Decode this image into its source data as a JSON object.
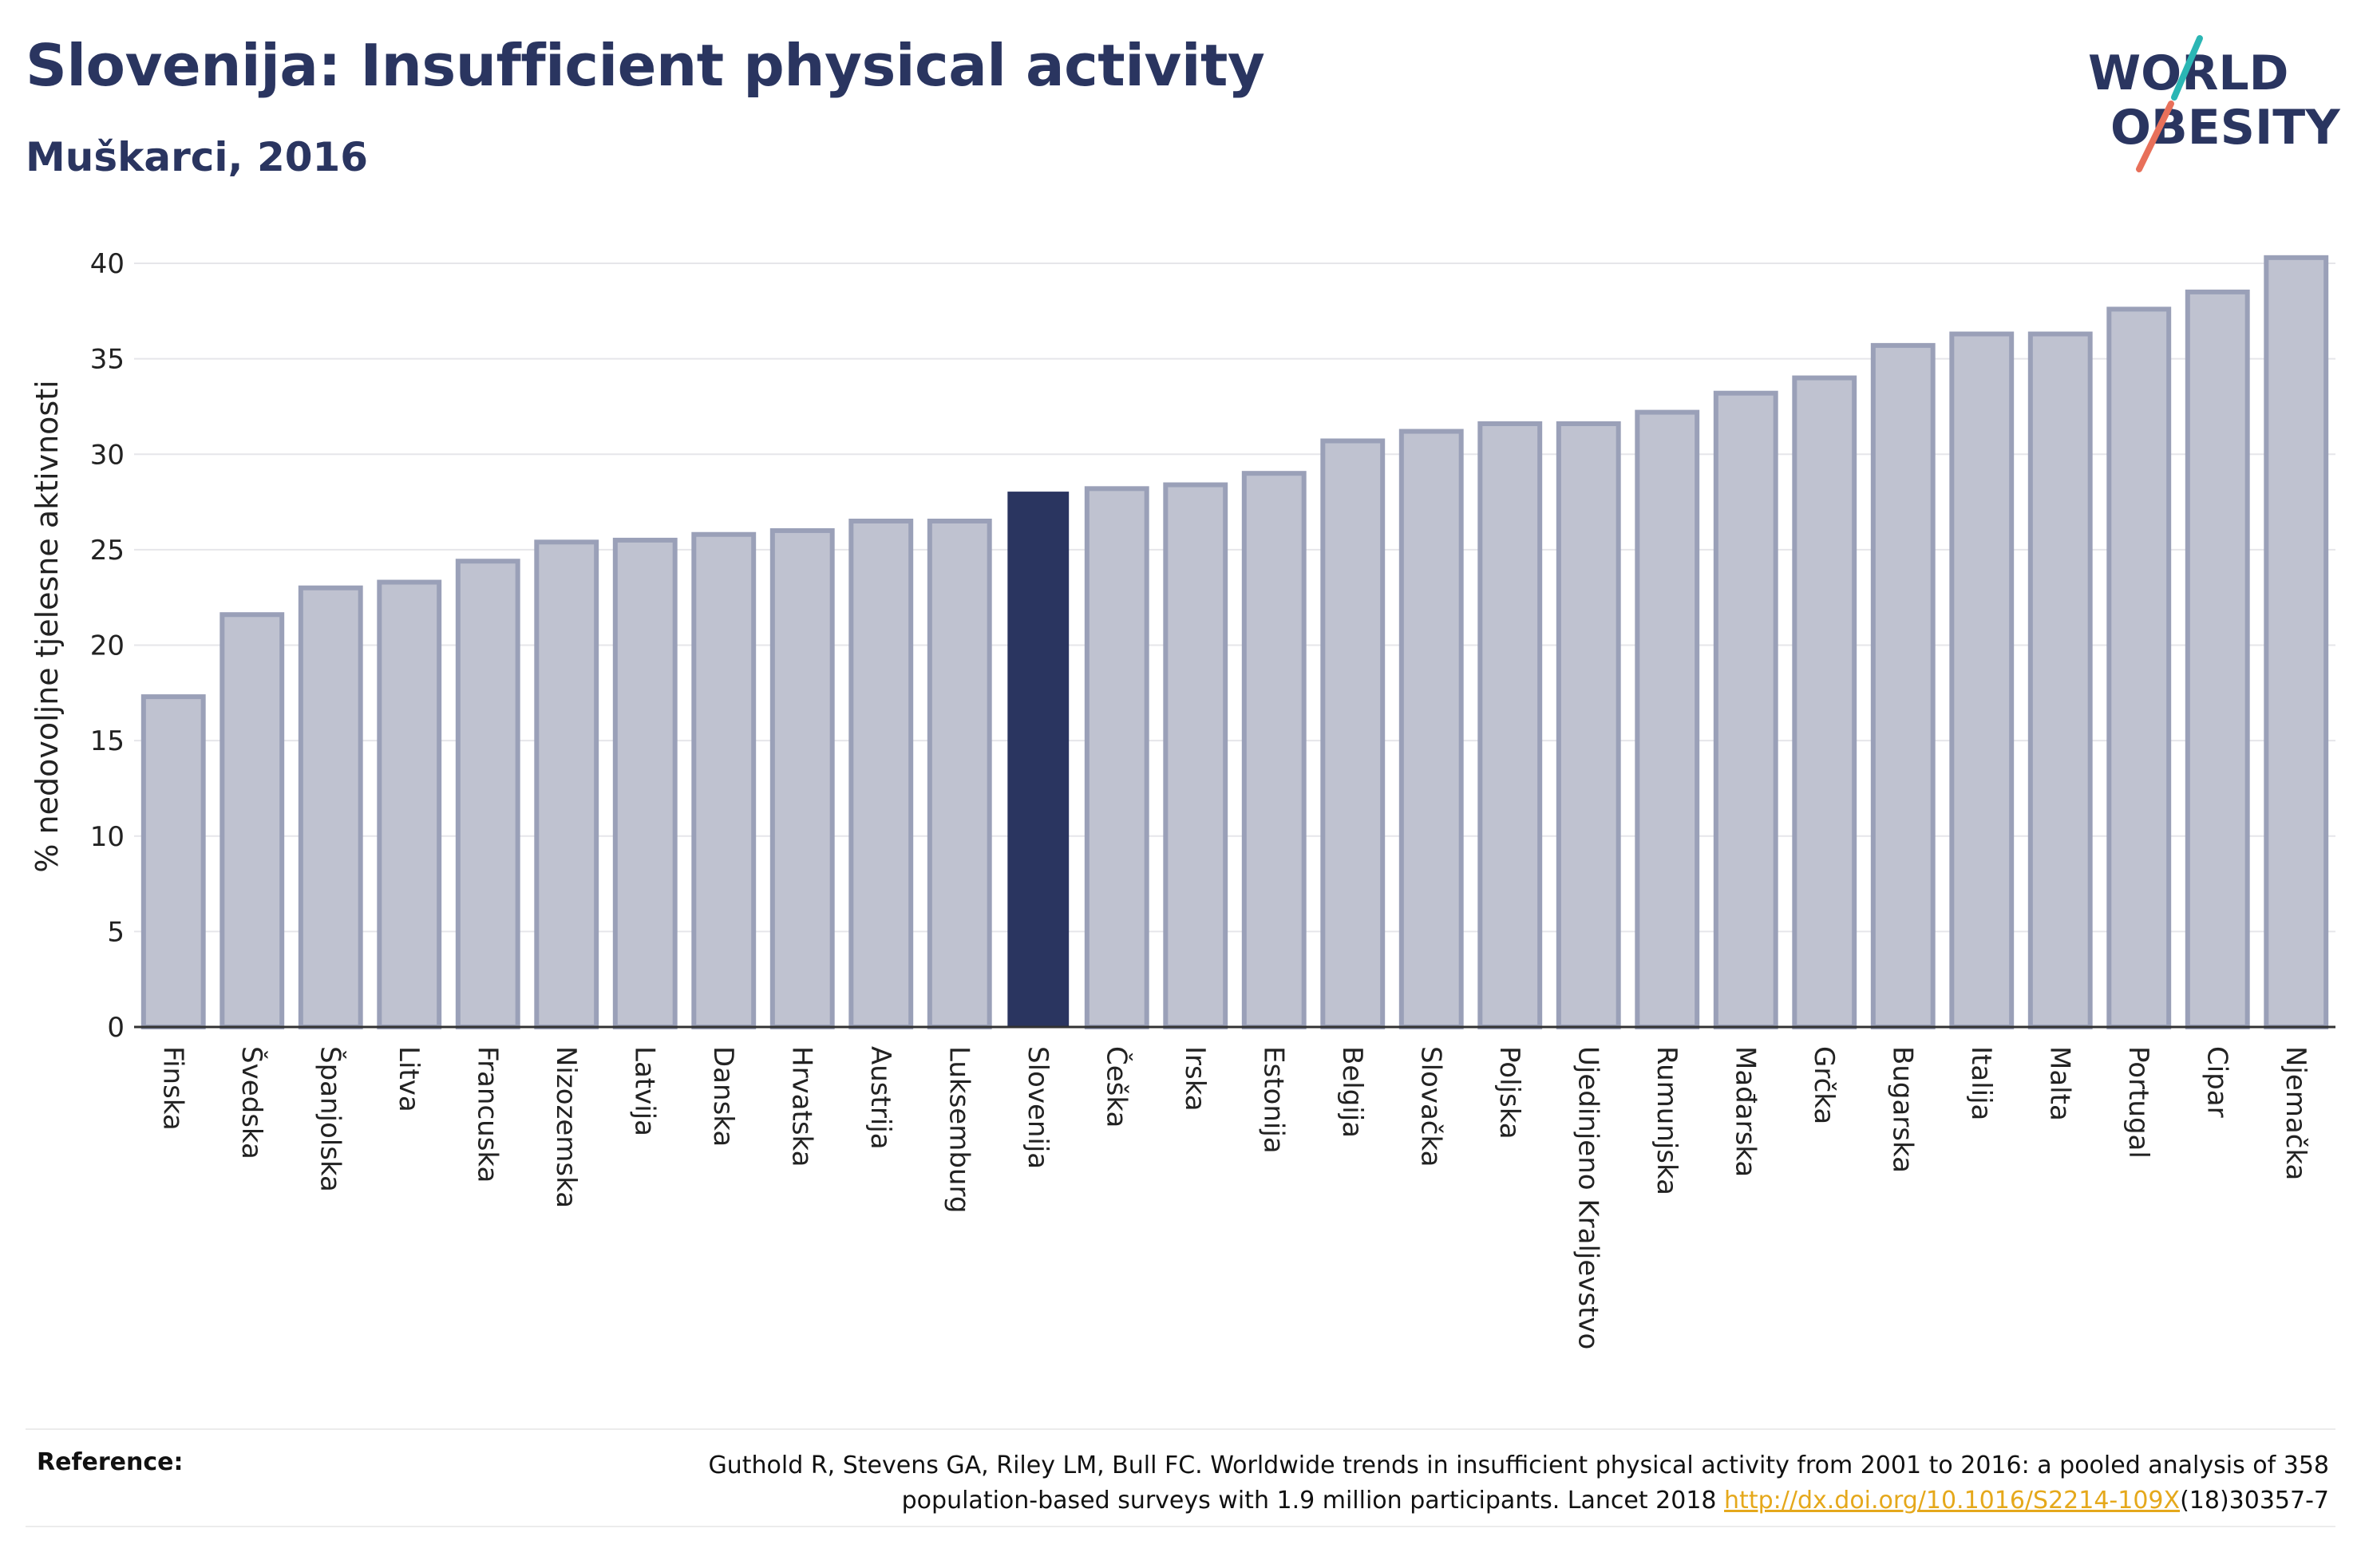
{
  "header": {
    "title": "Slovenija: Insufficient physical activity",
    "subtitle": "Muškarci, 2016"
  },
  "logo": {
    "line1": "WORLD",
    "line2": "OBESITY",
    "colors": {
      "text": "#2a3560",
      "slash_top": "#2bb6b4",
      "slash_bottom": "#e8705a"
    }
  },
  "chart_data": {
    "type": "bar",
    "ylabel": "% nedovoljne tjelesne aktivnosti",
    "ylim": [
      0,
      40
    ],
    "yticks": [
      0,
      5,
      10,
      15,
      20,
      25,
      30,
      35,
      40
    ],
    "grid": true,
    "highlight": "Slovenija",
    "colors": {
      "bar": "#bfc2d0",
      "bar_edge": "#9aa0b8",
      "highlight": "#2a3560",
      "grid": "#e6e6ea",
      "axis": "#333333"
    },
    "categories": [
      "Finska",
      "Švedska",
      "Španjolska",
      "Litva",
      "Francuska",
      "Nizozemska",
      "Latvija",
      "Danska",
      "Hrvatska",
      "Austrija",
      "Luksemburg",
      "Slovenija",
      "Češka",
      "Irska",
      "Estonija",
      "Belgija",
      "Slovačka",
      "Poljska",
      "Ujedinjeno Kraljevstvo",
      "Rumunjska",
      "Mađarska",
      "Grčka",
      "Bugarska",
      "Italija",
      "Malta",
      "Portugal",
      "Cipar",
      "Njemačka"
    ],
    "values": [
      17.3,
      21.6,
      23.0,
      23.3,
      24.4,
      25.4,
      25.5,
      25.8,
      26.0,
      26.5,
      26.5,
      28.0,
      28.2,
      28.4,
      29.0,
      30.7,
      31.2,
      31.6,
      31.6,
      32.2,
      33.2,
      34.0,
      35.7,
      36.3,
      36.3,
      37.6,
      38.5,
      40.3
    ]
  },
  "reference": {
    "label": "Reference:",
    "line1": "Guthold R, Stevens GA, Riley LM, Bull FC. Worldwide trends in insufficient physical activity from 2001 to 2016: a pooled analysis of 358",
    "line2_prefix": "population-based surveys with 1.9 million participants. Lancet 2018 ",
    "link": "http://dx.doi.org/10.1016/S2214-109X",
    "line2_suffix": "(18)30357-7"
  }
}
